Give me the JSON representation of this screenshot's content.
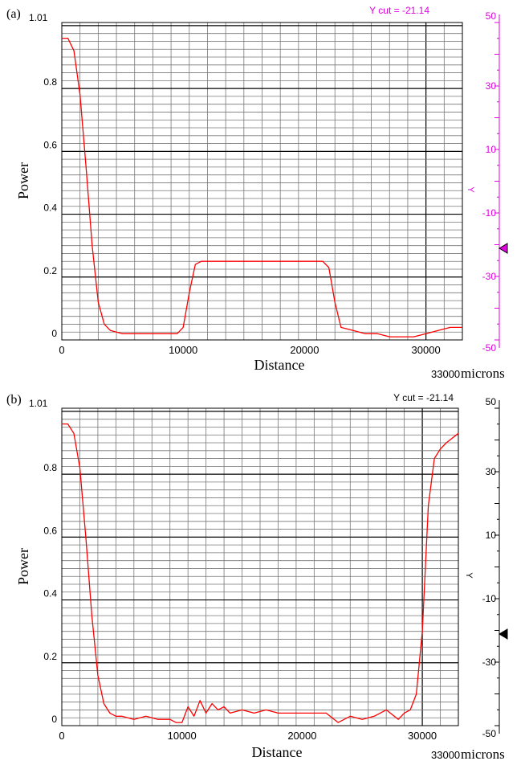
{
  "panels": [
    {
      "panel_label": "(a)",
      "y_cut_label": "Y cut = -21.14",
      "accent_color": "#e000e0",
      "curve_color": "#ff0000",
      "xlabel": "Distance",
      "ylabel": "Power",
      "x_end_label": "33000",
      "x_unit": "microns",
      "y_top_label": "1.01",
      "right_axis_label": "Y",
      "x_ticks": [
        "0",
        "10000",
        "20000",
        "30000"
      ],
      "y_ticks": [
        "0",
        "0.2",
        "0.4",
        "0.6",
        "0.8"
      ],
      "right_ticks": [
        "50",
        "30",
        "10",
        "-10",
        "-30",
        "-50"
      ]
    },
    {
      "panel_label": "(b)",
      "y_cut_label": "Y cut = -21.14",
      "accent_color": "#000000",
      "curve_color": "#ff0000",
      "xlabel": "Distance",
      "ylabel": "Power",
      "x_end_label": "33000",
      "x_unit": "microns",
      "y_top_label": "1.01",
      "right_axis_label": "Y",
      "x_ticks": [
        "0",
        "10000",
        "20000",
        "30000"
      ],
      "y_ticks": [
        "0",
        "0.2",
        "0.4",
        "0.6",
        "0.8"
      ],
      "right_ticks": [
        "50",
        "30",
        "10",
        "-10",
        "-30",
        "-50"
      ]
    }
  ],
  "chart_data": [
    {
      "type": "line",
      "xlabel": "Distance",
      "ylabel": "Power",
      "xlim": [
        0,
        33000
      ],
      "ylim": [
        0,
        1.01
      ],
      "right_axis": {
        "label": "Y",
        "lim": [
          -50,
          50
        ],
        "marker_value": -21.14
      },
      "grid": true,
      "series": [
        {
          "x": [
            0,
            500,
            1000,
            1500,
            2000,
            2500,
            3000,
            3500,
            4000,
            5000,
            6000,
            7000,
            8000,
            9000,
            9500,
            10000,
            10500,
            11000,
            11500,
            12000,
            13000,
            14000,
            15000,
            16000,
            17000,
            18000,
            19000,
            20000,
            21000,
            21500,
            22000,
            22500,
            23000,
            24000,
            25000,
            26000,
            27000,
            28000,
            29000,
            30000,
            31000,
            32000,
            33000
          ],
          "y": [
            0.96,
            0.96,
            0.92,
            0.78,
            0.55,
            0.3,
            0.12,
            0.05,
            0.03,
            0.02,
            0.02,
            0.02,
            0.02,
            0.02,
            0.02,
            0.04,
            0.15,
            0.24,
            0.25,
            0.25,
            0.25,
            0.25,
            0.25,
            0.25,
            0.25,
            0.25,
            0.25,
            0.25,
            0.25,
            0.25,
            0.23,
            0.12,
            0.04,
            0.03,
            0.02,
            0.02,
            0.01,
            0.01,
            0.01,
            0.02,
            0.03,
            0.04,
            0.04
          ]
        }
      ]
    },
    {
      "type": "line",
      "xlabel": "Distance",
      "ylabel": "Power",
      "xlim": [
        0,
        33000
      ],
      "ylim": [
        0,
        1.01
      ],
      "right_axis": {
        "label": "Y",
        "lim": [
          -50,
          50
        ],
        "marker_value": -21.14
      },
      "grid": true,
      "series": [
        {
          "x": [
            0,
            500,
            1000,
            1500,
            2000,
            2500,
            3000,
            3500,
            4000,
            4500,
            5000,
            6000,
            7000,
            8000,
            9000,
            9500,
            10000,
            10500,
            11000,
            11500,
            12000,
            12500,
            13000,
            13500,
            14000,
            15000,
            16000,
            17000,
            18000,
            19000,
            20000,
            21000,
            22000,
            23000,
            23500,
            24000,
            25000,
            26000,
            27000,
            28000,
            28500,
            29000,
            29500,
            30000,
            30500,
            31000,
            31500,
            32000,
            33000
          ],
          "y": [
            0.96,
            0.96,
            0.93,
            0.82,
            0.6,
            0.35,
            0.16,
            0.07,
            0.04,
            0.03,
            0.03,
            0.02,
            0.03,
            0.02,
            0.02,
            0.01,
            0.01,
            0.06,
            0.03,
            0.08,
            0.04,
            0.07,
            0.05,
            0.06,
            0.04,
            0.05,
            0.04,
            0.05,
            0.04,
            0.04,
            0.04,
            0.04,
            0.04,
            0.01,
            0.02,
            0.03,
            0.02,
            0.03,
            0.05,
            0.02,
            0.04,
            0.05,
            0.1,
            0.3,
            0.7,
            0.85,
            0.88,
            0.9,
            0.93
          ]
        }
      ]
    }
  ]
}
